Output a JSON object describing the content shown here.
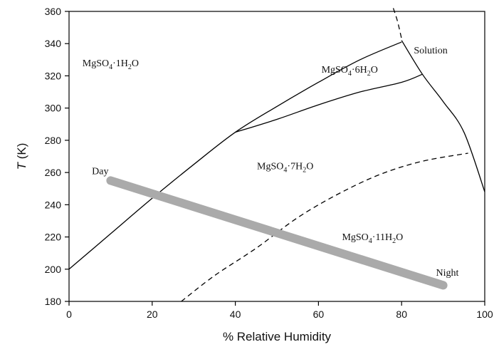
{
  "chart_data": {
    "type": "line",
    "title": "",
    "xlabel": "% Relative Humidity",
    "ylabel_italic": "T",
    "ylabel_rest": " (K)",
    "xlim": [
      0,
      100
    ],
    "ylim": [
      180,
      360
    ],
    "x_ticks": [
      0,
      20,
      40,
      60,
      80,
      100
    ],
    "y_ticks": [
      180,
      200,
      220,
      240,
      260,
      280,
      300,
      320,
      340,
      360
    ],
    "grid": false,
    "legend": "none",
    "colors": {
      "phase_line": "#000000",
      "path_band": "#aaaaaa"
    },
    "series": [
      {
        "style": "solid",
        "points": [
          [
            0,
            200
          ],
          [
            10,
            222
          ],
          [
            20,
            244
          ],
          [
            30,
            265
          ],
          [
            40,
            285
          ],
          [
            50,
            301
          ],
          [
            60,
            316
          ],
          [
            70,
            330
          ],
          [
            80,
            341
          ]
        ]
      },
      {
        "style": "solid",
        "points": [
          [
            40,
            285
          ],
          [
            50,
            293
          ],
          [
            60,
            302
          ],
          [
            70,
            310
          ],
          [
            80,
            316
          ],
          [
            85,
            321
          ]
        ]
      },
      {
        "style": "solid",
        "points": [
          [
            80,
            342
          ],
          [
            85,
            321
          ],
          [
            90,
            304
          ],
          [
            95,
            285
          ],
          [
            100,
            248
          ]
        ]
      },
      {
        "style": "dashed",
        "points": [
          [
            78,
            362
          ],
          [
            79,
            354
          ],
          [
            80,
            343
          ]
        ]
      },
      {
        "style": "dashed",
        "points": [
          [
            27,
            180
          ],
          [
            35,
            196
          ],
          [
            45,
            213
          ],
          [
            55,
            232
          ],
          [
            65,
            247
          ],
          [
            75,
            259
          ],
          [
            85,
            267
          ],
          [
            96,
            272
          ]
        ]
      },
      {
        "style": "thick",
        "points": [
          [
            10,
            255
          ],
          [
            90,
            190
          ]
        ]
      }
    ],
    "region_labels": [
      {
        "formula": "MgSO",
        "sub": "4",
        "rest": "·1H",
        "sub2": "2",
        "tail": "O",
        "x": 10,
        "y": 326
      },
      {
        "formula": "MgSO",
        "sub": "4",
        "rest": "·6H",
        "sub2": "2",
        "tail": "O",
        "x": 67.5,
        "y": 322
      },
      {
        "formula": "MgSO",
        "sub": "4",
        "rest": "·7H",
        "sub2": "2",
        "tail": "O",
        "x": 52,
        "y": 262
      },
      {
        "formula": "MgSO",
        "sub": "4",
        "rest": "·11H",
        "sub2": "2",
        "tail": "O",
        "x": 73,
        "y": 218
      }
    ],
    "annotations": [
      {
        "text": "Solution",
        "x": 87,
        "y": 334
      },
      {
        "text": "Day",
        "x": 7.5,
        "y": 259
      },
      {
        "text": "Night",
        "x": 91,
        "y": 196
      }
    ]
  }
}
